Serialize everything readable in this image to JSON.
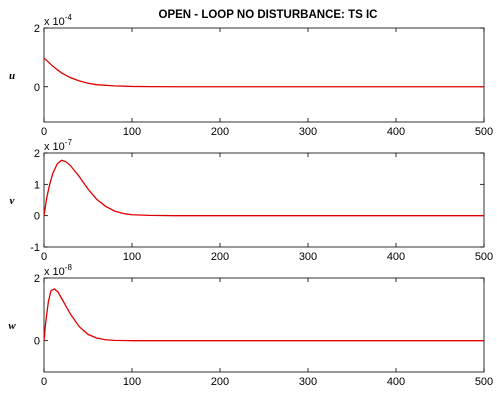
{
  "title": "OPEN - LOOP  NO  DISTURBANCE: TS  IC",
  "chart_data": [
    {
      "type": "line",
      "ylabel": "u",
      "scale_base": "x 10",
      "scale_exp": "-4",
      "xlim": [
        0,
        500
      ],
      "ylim": [
        -1.2,
        2
      ],
      "xticks": [
        "0",
        "100",
        "200",
        "300",
        "400",
        "500"
      ],
      "yticks": [
        "0",
        "2"
      ],
      "ytick_values": [
        0,
        2
      ],
      "line_color": "#e00000",
      "series": [
        {
          "x": [
            0,
            5,
            10,
            15,
            20,
            30,
            40,
            50,
            60,
            80,
            100,
            120,
            150,
            200,
            300,
            400,
            500
          ],
          "y": [
            0.98,
            0.84,
            0.7,
            0.58,
            0.47,
            0.31,
            0.2,
            0.12,
            0.07,
            0.03,
            0.01,
            0.005,
            0.0,
            0.0,
            0.0,
            0.0,
            0.0
          ]
        }
      ]
    },
    {
      "type": "line",
      "ylabel": "v",
      "scale_base": "x 10",
      "scale_exp": "-7",
      "xlim": [
        0,
        500
      ],
      "ylim": [
        -1,
        2
      ],
      "xticks": [
        "0",
        "100",
        "200",
        "300",
        "400",
        "500"
      ],
      "yticks": [
        "-1",
        "0",
        "1",
        "2"
      ],
      "ytick_values": [
        -1,
        0,
        1,
        2
      ],
      "line_color": "#e00000",
      "series": [
        {
          "x": [
            0,
            3,
            6,
            10,
            15,
            20,
            25,
            30,
            40,
            50,
            60,
            70,
            80,
            90,
            100,
            120,
            150,
            200,
            300,
            400,
            500
          ],
          "y": [
            0.0,
            0.55,
            0.95,
            1.35,
            1.65,
            1.77,
            1.72,
            1.6,
            1.25,
            0.85,
            0.52,
            0.3,
            0.15,
            0.07,
            0.03,
            0.01,
            0.0,
            0.0,
            0.0,
            0.0,
            0.0
          ]
        }
      ]
    },
    {
      "type": "line",
      "ylabel": "w",
      "scale_base": "x 10",
      "scale_exp": "-8",
      "xlim": [
        0,
        500
      ],
      "ylim": [
        -1,
        2
      ],
      "xticks": [
        "0",
        "100",
        "200",
        "300",
        "400",
        "500"
      ],
      "yticks": [
        "0",
        "2"
      ],
      "ytick_values": [
        0,
        2
      ],
      "line_color": "#e00000",
      "series": [
        {
          "x": [
            0,
            2,
            5,
            8,
            12,
            16,
            20,
            25,
            30,
            40,
            50,
            60,
            70,
            80,
            100,
            150,
            200,
            300,
            400,
            500
          ],
          "y": [
            0.0,
            0.6,
            1.25,
            1.6,
            1.65,
            1.55,
            1.35,
            1.1,
            0.85,
            0.45,
            0.2,
            0.08,
            0.03,
            0.01,
            0.0,
            0.0,
            0.0,
            0.0,
            0.0,
            0.0
          ]
        }
      ]
    }
  ]
}
